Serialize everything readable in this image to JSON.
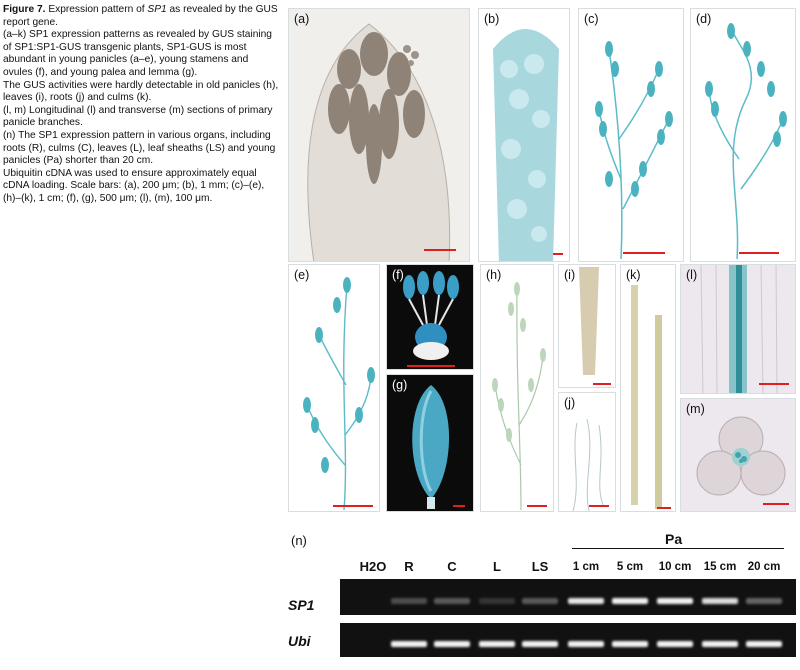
{
  "caption": {
    "figure_label": "Figure 7.",
    "title_a": "Expression pattern of ",
    "title_gene": "SP1",
    "title_b": " as revealed by the GUS report gene.",
    "p1": "(a–k) SP1 expression patterns as revealed by GUS staining of SP1:SP1-GUS transgenic plants, SP1-GUS is most abundant in young panicles (a–e), young stamens and ovules (f), and young palea and lemma (g).",
    "p2": "The GUS activities were hardly detectable in old panicles (h), leaves (i), roots (j) and culms (k).",
    "p3": "(l, m) Longitudinal (l) and transverse (m) sections of primary panicle branches.",
    "p4": "(n) The SP1 expression pattern in various organs, including roots (R), culms (C), leaves (L), leaf sheaths (LS) and young panicles (Pa) shorter than 20 cm.",
    "p5": "Ubiquitin cDNA was used to ensure approximately equal cDNA loading. Scale bars: (a), 200 μm; (b), 1 mm; (c)–(e), (h)–(k), 1 cm; (f), (g), 500 μm; (l), (m), 100 μm."
  },
  "panels": {
    "a": "(a)",
    "b": "(b)",
    "c": "(c)",
    "d": "(d)",
    "e": "(e)",
    "f": "(f)",
    "g": "(g)",
    "h": "(h)",
    "i": "(i)",
    "j": "(j)",
    "k": "(k)",
    "l": "(l)",
    "m": "(m)",
    "n": "(n)"
  },
  "gel": {
    "group_label": "Pa",
    "lanes": [
      "H2O",
      "R",
      "C",
      "L",
      "LS",
      "1 cm",
      "5 cm",
      "10 cm",
      "15 cm",
      "20 cm"
    ],
    "rows": [
      "SP1",
      "Ubi"
    ],
    "sp1_intensity": [
      0,
      0.25,
      0.3,
      0.15,
      0.3,
      0.9,
      0.95,
      0.95,
      0.85,
      0.35
    ],
    "ubi_intensity": [
      0,
      0.95,
      0.95,
      0.95,
      0.95,
      0.95,
      0.95,
      0.95,
      0.95,
      0.95
    ]
  },
  "colors": {
    "gus_blue": "#4bb3c0",
    "scale_bar": "#e02020"
  }
}
